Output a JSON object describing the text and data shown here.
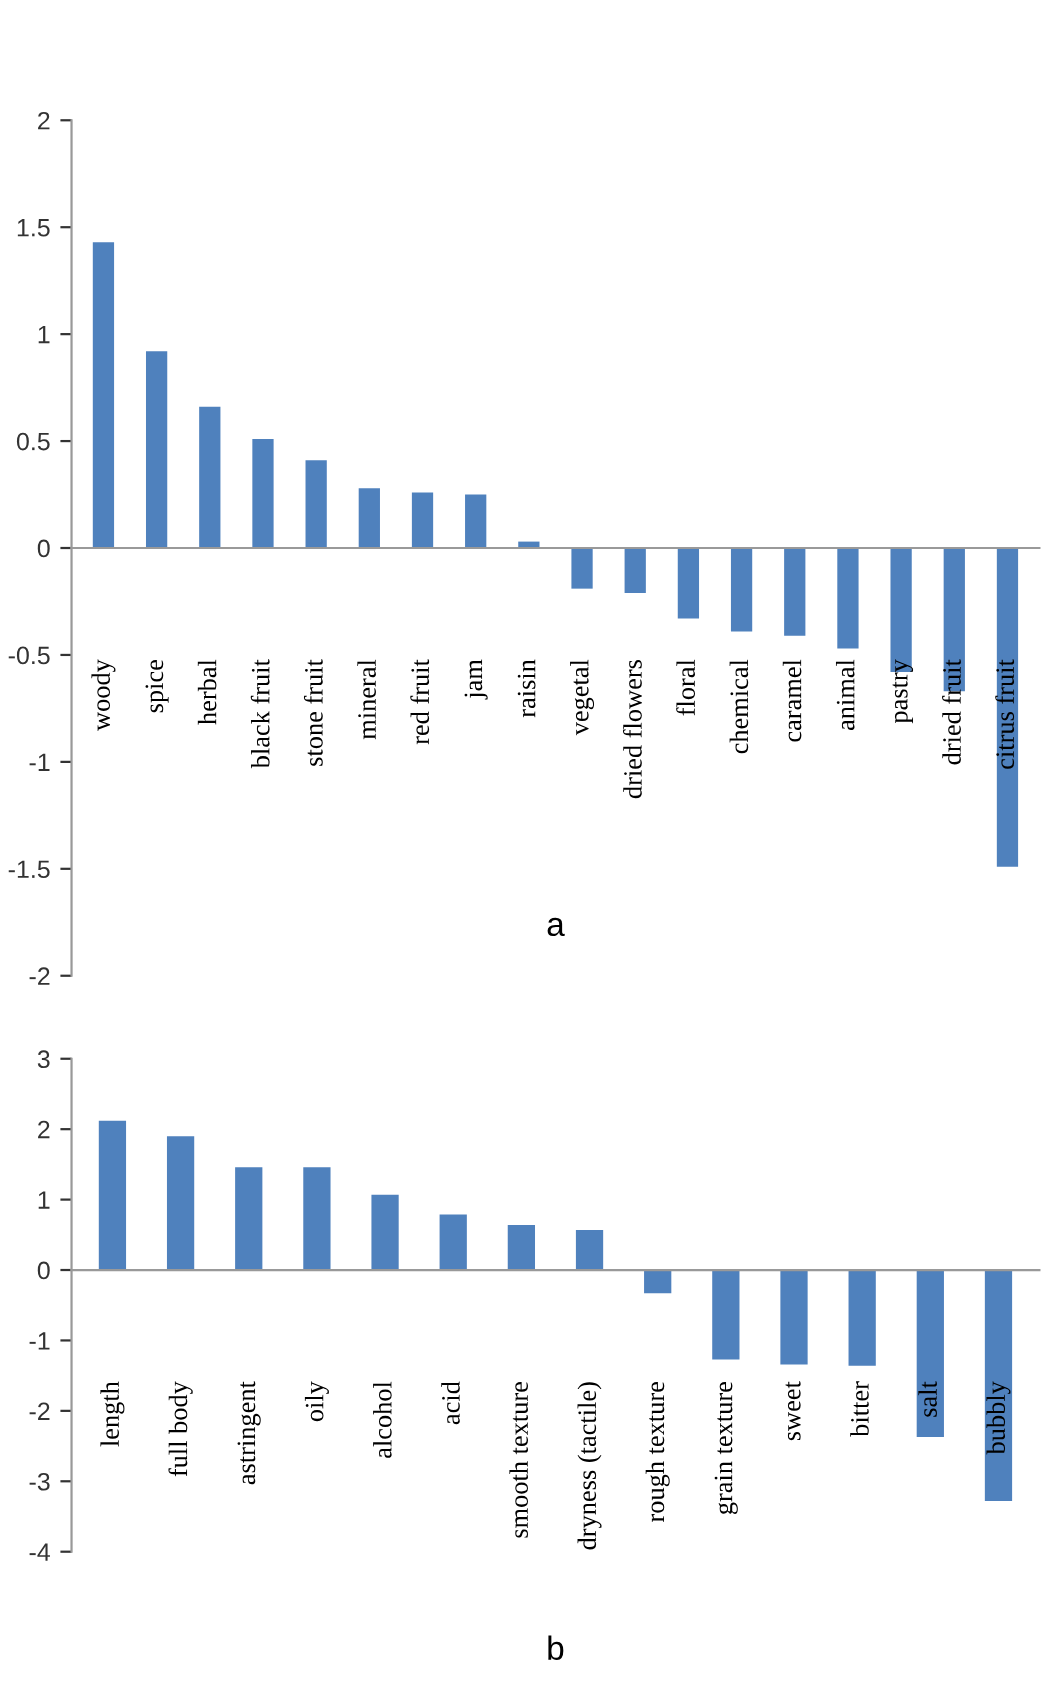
{
  "chart_data": [
    {
      "type": "bar",
      "xlabel": "a",
      "color": "#4f81bd",
      "categories": [
        "woody",
        "spice",
        "herbal",
        "black fruit",
        "stone fruit",
        "mineral",
        "red fruit",
        "jam",
        "raisin",
        "vegetal",
        "dried flowers",
        "floral",
        "chemical",
        "caramel",
        "animal",
        "pastry",
        "dried fruit",
        "citrus fruit"
      ],
      "values": [
        1.43,
        0.92,
        0.66,
        0.51,
        0.41,
        0.28,
        0.26,
        0.25,
        0.03,
        -0.19,
        -0.21,
        -0.33,
        -0.39,
        -0.41,
        -0.47,
        -0.58,
        -0.67,
        -1.49
      ],
      "ylim": [
        -2,
        2
      ],
      "yticks": [
        -2,
        -1.5,
        -1,
        -0.5,
        0,
        0.5,
        1,
        1.5,
        2
      ]
    },
    {
      "type": "bar",
      "xlabel": "b",
      "color": "#4f81bd",
      "categories": [
        "length",
        "full body",
        "astringent",
        "oily",
        "alcohol",
        "acid",
        "smooth texture",
        "dryness (tactile)",
        "rough texture",
        "grain texture",
        "sweet",
        "bitter",
        "salt",
        "bubbly"
      ],
      "values": [
        2.12,
        1.9,
        1.46,
        1.46,
        1.07,
        0.79,
        0.64,
        0.57,
        -0.33,
        -1.27,
        -1.34,
        -1.36,
        -2.37,
        -3.28
      ],
      "ylim": [
        -4,
        3
      ],
      "yticks": [
        -4,
        -3,
        -2,
        -1,
        0,
        1,
        2,
        3
      ]
    }
  ]
}
